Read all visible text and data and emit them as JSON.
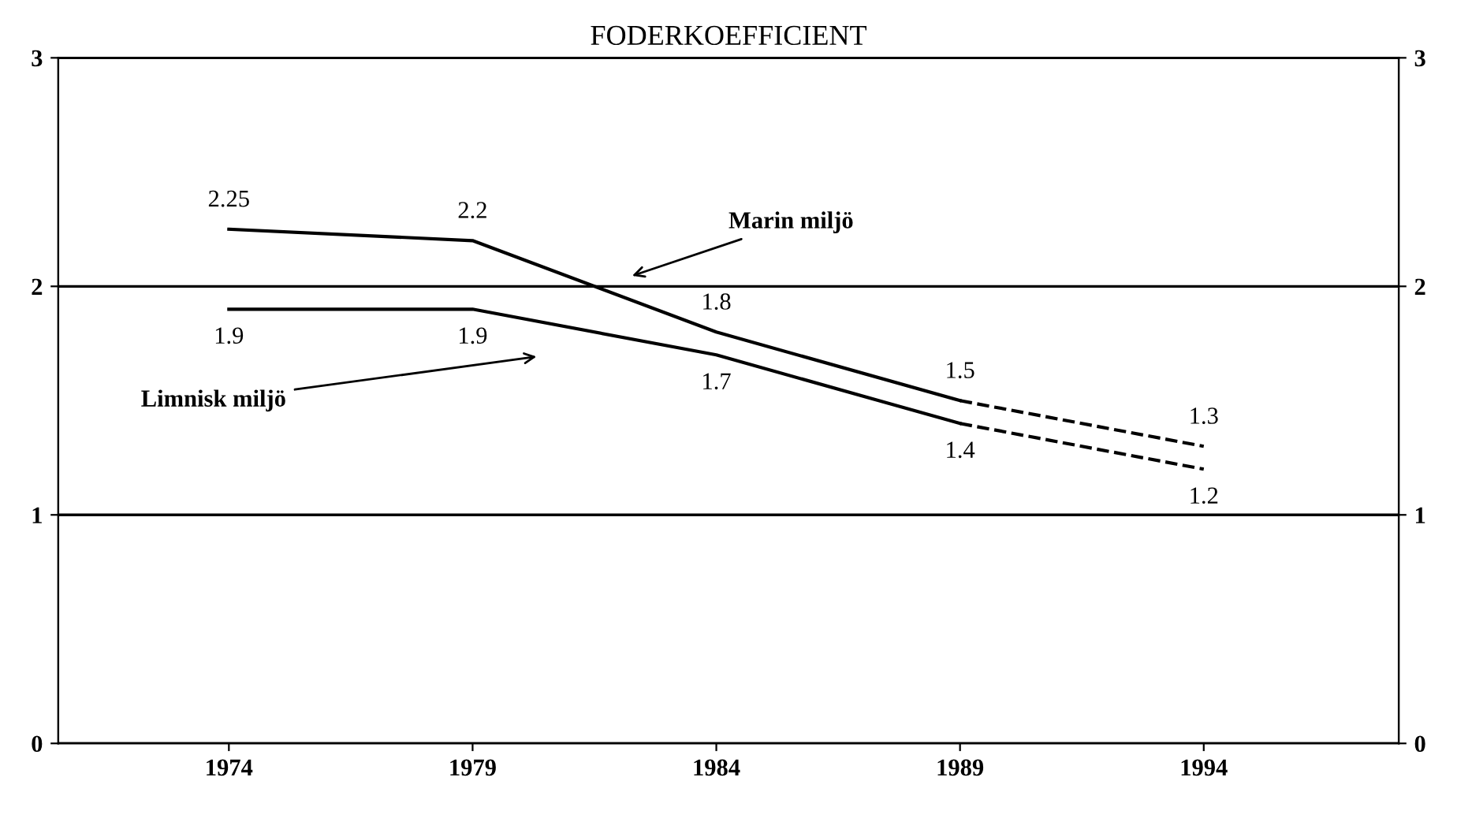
{
  "chart_data": {
    "type": "line",
    "title": "FODERKOEFFICIENT",
    "series": [
      {
        "color": "#000000",
        "line_style": "solid",
        "x": [
          1974,
          1979,
          1984,
          1989
        ],
        "values": [
          2.25,
          2.2,
          1.8,
          1.5
        ],
        "value_labels": [
          "2.25",
          "2.2",
          "1.8",
          "1.5"
        ]
      },
      {
        "color": "#000000",
        "line_style": "dashed",
        "x": [
          1989,
          1994
        ],
        "values": [
          1.5,
          1.3
        ],
        "value_labels": [
          null,
          "1.3"
        ]
      },
      {
        "color": "#000000",
        "line_style": "solid",
        "x": [
          1974,
          1979,
          1984,
          1989
        ],
        "values": [
          1.9,
          1.9,
          1.7,
          1.4
        ],
        "value_labels": [
          "1.9",
          "1.9",
          "1.7",
          "1.4"
        ]
      },
      {
        "color": "#000000",
        "line_style": "dashed",
        "x": [
          1989,
          1994
        ],
        "values": [
          1.4,
          1.2
        ],
        "value_labels": [
          null,
          "1.2"
        ]
      }
    ],
    "annotations": [
      "Marin miljö",
      "Limnisk miljö"
    ],
    "xlim": [
      1970.5,
      1998
    ],
    "xticks": [
      1974,
      1979,
      1984,
      1989,
      1994
    ],
    "ylim": [
      0,
      3
    ],
    "yticks": [
      0,
      1,
      2,
      3
    ],
    "y2lim": [
      0,
      3
    ],
    "y2ticks": [
      0,
      1,
      2,
      3
    ],
    "grid": "y",
    "legend": false,
    "marker": "none"
  }
}
